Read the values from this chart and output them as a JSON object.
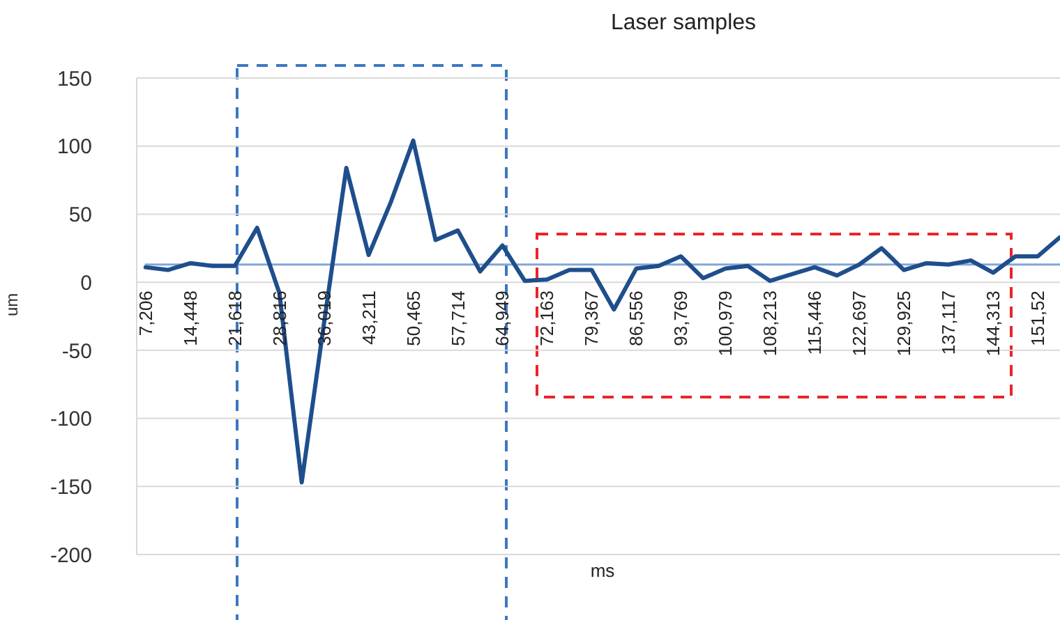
{
  "chart_data": {
    "type": "line",
    "title": "Laser samples",
    "xlabel": "ms",
    "ylabel": "um",
    "categories": [
      "7,206",
      null,
      "14,448",
      null,
      "21,618",
      null,
      "28,816",
      null,
      "36,019",
      null,
      "43,211",
      null,
      "50,465",
      null,
      "57,714",
      null,
      "64,949",
      null,
      "72,163",
      null,
      "79,367",
      null,
      "86,556",
      null,
      "93,769",
      null,
      "100,979",
      null,
      "108,213",
      null,
      "115,446",
      null,
      "122,697",
      null,
      "129,925",
      null,
      "137,117",
      null,
      "144,313",
      null,
      "151,52",
      null
    ],
    "series": [
      {
        "color": "#7fa7d6",
        "values": [
          13,
          13,
          13,
          13,
          13,
          13,
          13,
          13,
          13,
          13,
          13,
          13,
          13,
          13,
          13,
          13,
          13,
          13,
          13,
          13,
          13,
          13,
          13,
          13,
          13,
          13,
          13,
          13,
          13,
          13,
          13,
          13,
          13,
          13,
          13,
          13,
          13,
          13,
          13,
          13,
          13,
          13
        ]
      },
      {
        "color": "#1f4e8c",
        "values": [
          11,
          9,
          14,
          12,
          12,
          40,
          -8,
          -147,
          -30,
          84,
          20,
          59,
          104,
          31,
          38,
          8,
          27,
          1,
          2,
          9,
          9,
          -20,
          10,
          12,
          19,
          3,
          10,
          12,
          1,
          6,
          11,
          5,
          13,
          25,
          9,
          14,
          13,
          16,
          7,
          19,
          19,
          33
        ]
      }
    ],
    "ylim": [
      -200,
      150
    ],
    "yticks": [
      -200,
      -150,
      -100,
      -50,
      0,
      50,
      100,
      150
    ],
    "grid": "y",
    "marker": "none",
    "line_style": "solid"
  }
}
